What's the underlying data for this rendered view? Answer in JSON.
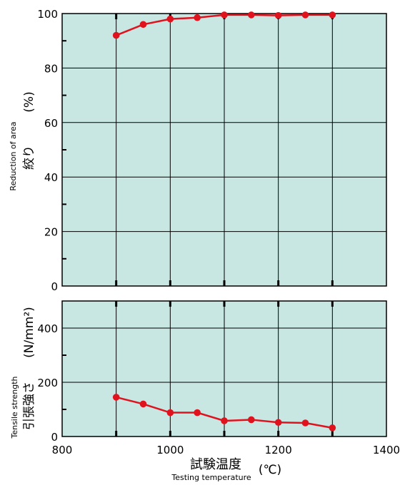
{
  "colors": {
    "plot_bg": "#c8e6e2",
    "grid": "#000000",
    "series": "#e0121e"
  },
  "labels": {
    "top_ylabel_en": "Reduction of area",
    "top_ylabel_ja": "絞り",
    "top_ylabel_unit": "(%)",
    "bottom_ylabel_en": "Tensile strength",
    "bottom_ylabel_ja": "引張強さ",
    "bottom_ylabel_unit": "(N/mm²)",
    "xlabel_ja": "試験温度",
    "xlabel_unit": "(℃)",
    "xlabel_en": "Testing temperature"
  },
  "chart_data": [
    {
      "type": "line",
      "title": "",
      "ylabel": "Reduction of area 絞り (%)",
      "xlim": [
        800,
        1400
      ],
      "ylim": [
        0,
        100
      ],
      "x_ticks": [
        800,
        1000,
        1200,
        1400
      ],
      "y_ticks": [
        0,
        20,
        40,
        60,
        80,
        100
      ],
      "grid": true,
      "series": [
        {
          "x": [
            900,
            950,
            1000,
            1050,
            1100,
            1150,
            1200,
            1250,
            1300
          ],
          "values": [
            92,
            96,
            98,
            98.5,
            99.5,
            99.5,
            99.3,
            99.5,
            99.5
          ]
        }
      ]
    },
    {
      "type": "line",
      "title": "",
      "ylabel": "Tensile strength 引張強さ (N/mm²)",
      "xlabel": "試験温度 (℃) Testing temperature",
      "xlim": [
        800,
        1400
      ],
      "ylim": [
        0,
        500
      ],
      "x_ticks": [
        800,
        1000,
        1200,
        1400
      ],
      "y_ticks": [
        0,
        200,
        400
      ],
      "grid": true,
      "series": [
        {
          "x": [
            900,
            950,
            1000,
            1050,
            1100,
            1150,
            1200,
            1250,
            1300
          ],
          "values": [
            145,
            120,
            88,
            88,
            58,
            62,
            52,
            50,
            32
          ]
        }
      ]
    }
  ]
}
